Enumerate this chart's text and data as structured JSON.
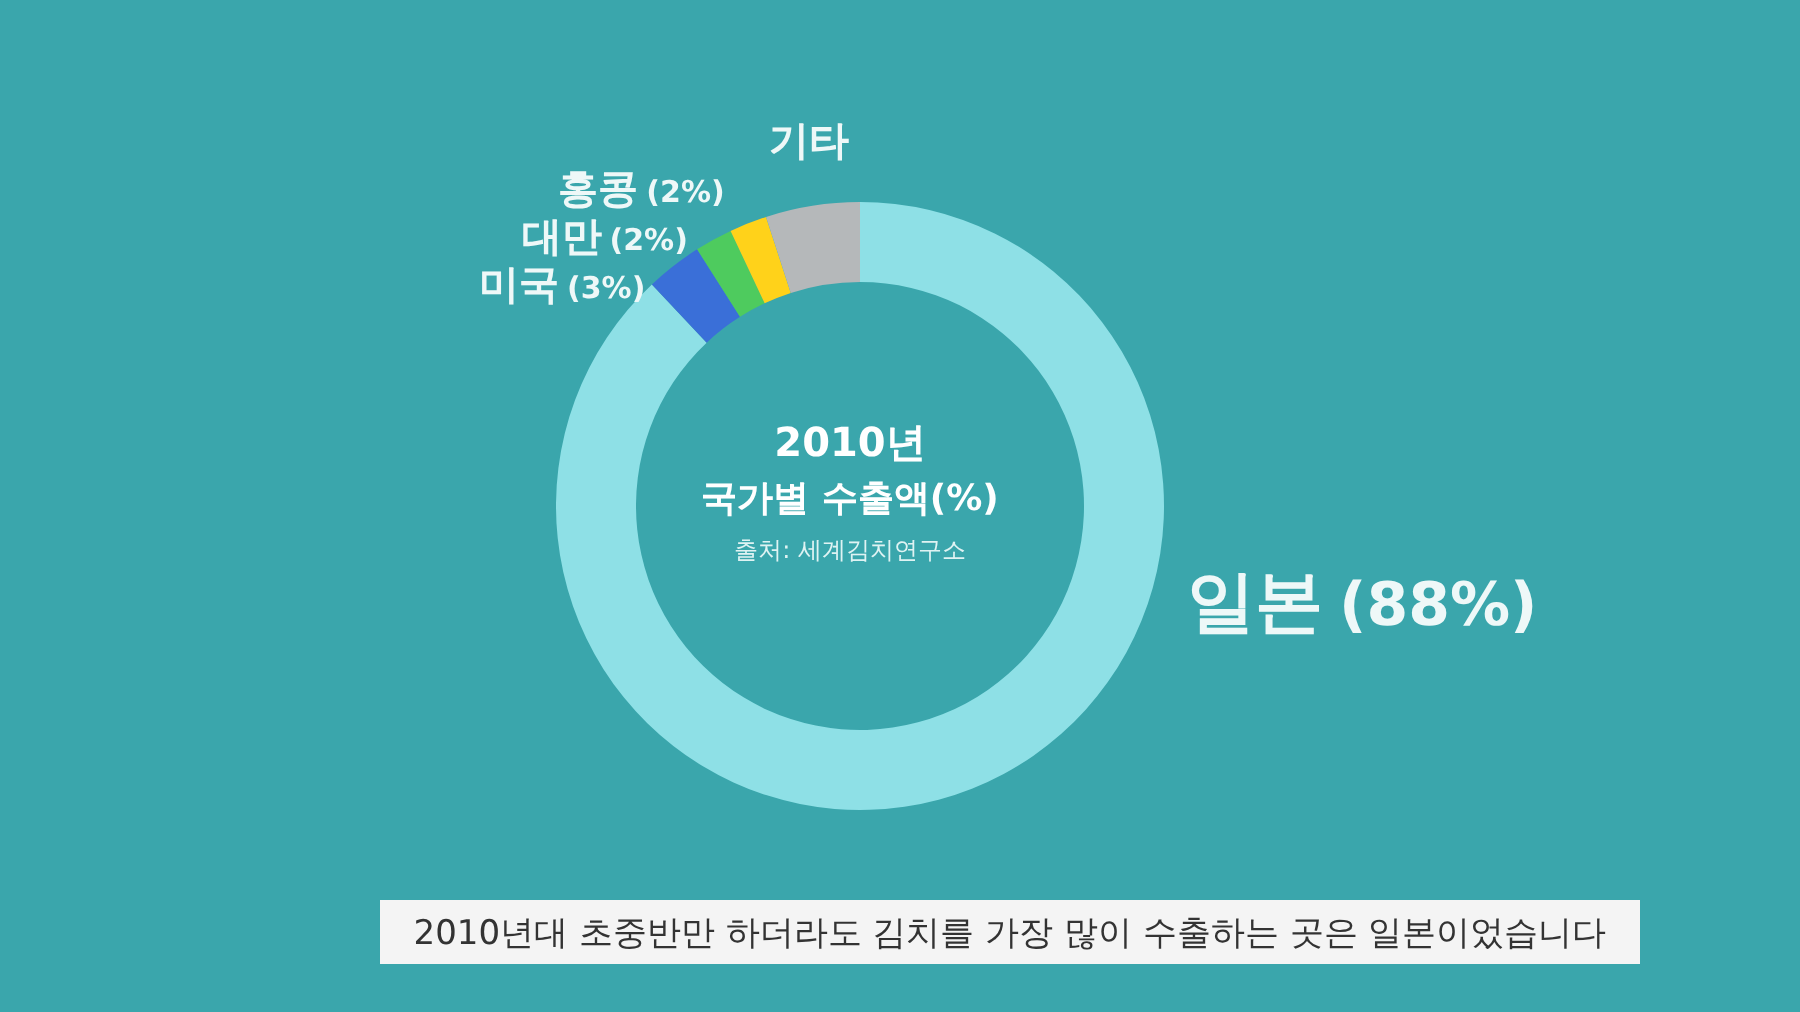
{
  "chart_data": {
    "type": "donut",
    "title": "2010년",
    "subtitle": "국가별 수출액(%)",
    "categories": [
      "일본",
      "미국",
      "대만",
      "홍콩",
      "기타"
    ],
    "values": [
      88,
      3,
      2,
      2,
      5
    ],
    "value_labels": [
      "(88%)",
      "(3%)",
      "(2%)",
      "(2%)",
      null
    ],
    "colors": [
      "#8ee0e6",
      "#3a6fd8",
      "#4ecb5e",
      "#ffd21a",
      "#b5b8ba"
    ],
    "annotations": [
      "출처: 세계김치연구소",
      "2010년대 초중반만 하더라도 김치를 가장 많이 수출하는 곳은 일본이었습니다"
    ],
    "legend": false
  }
}
